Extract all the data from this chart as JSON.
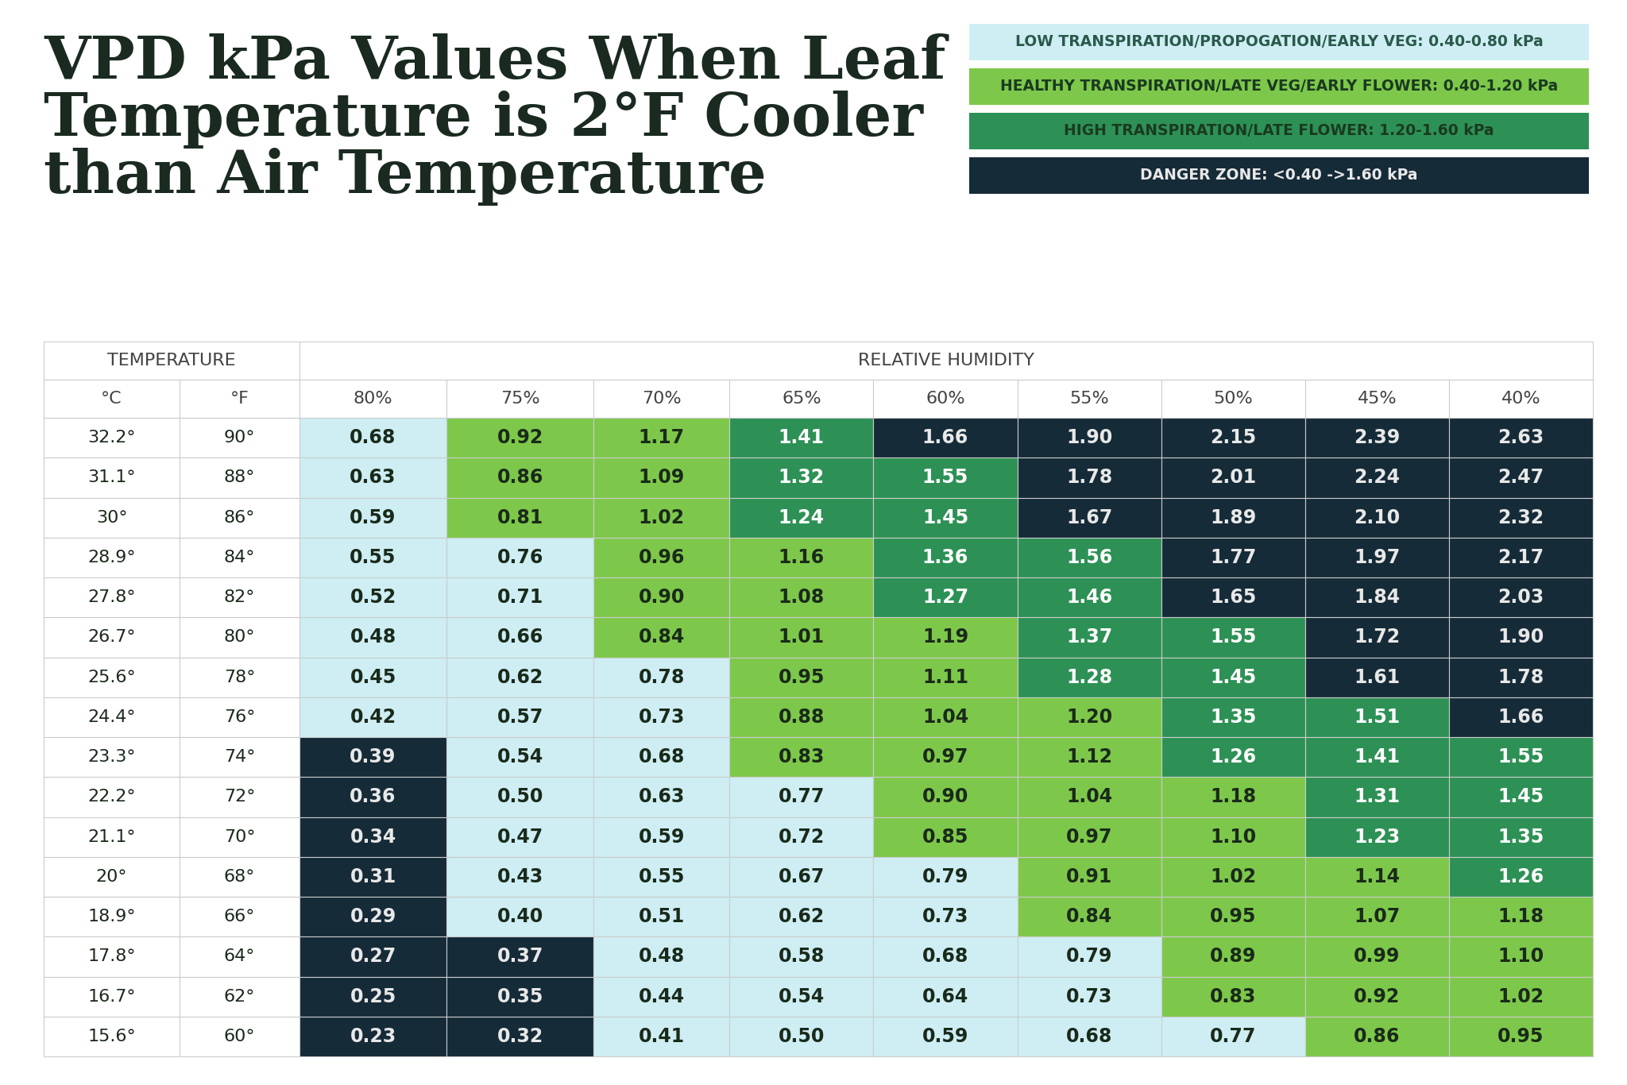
{
  "title_line1": "VPD kPa Values When Leaf",
  "title_line2_normal": "Temperature is ",
  "title_line2_bold": "2°F Cooler",
  "title_line3": "than Air Temperature",
  "background_color": "#ffffff",
  "temp_c": [
    "32.2°",
    "31.1°",
    "30°",
    "28.9°",
    "27.8°",
    "26.7°",
    "25.6°",
    "24.4°",
    "23.3°",
    "22.2°",
    "21.1°",
    "20°",
    "18.9°",
    "17.8°",
    "16.7°",
    "15.6°"
  ],
  "temp_f": [
    "90°",
    "88°",
    "86°",
    "84°",
    "82°",
    "80°",
    "78°",
    "76°",
    "74°",
    "72°",
    "70°",
    "68°",
    "66°",
    "64°",
    "62°",
    "60°"
  ],
  "humidity_cols": [
    "80%",
    "75%",
    "70%",
    "65%",
    "60%",
    "55%",
    "50%",
    "45%",
    "40%"
  ],
  "values": [
    [
      0.68,
      0.92,
      1.17,
      1.41,
      1.66,
      1.9,
      2.15,
      2.39,
      2.63
    ],
    [
      0.63,
      0.86,
      1.09,
      1.32,
      1.55,
      1.78,
      2.01,
      2.24,
      2.47
    ],
    [
      0.59,
      0.81,
      1.02,
      1.24,
      1.45,
      1.67,
      1.89,
      2.1,
      2.32
    ],
    [
      0.55,
      0.76,
      0.96,
      1.16,
      1.36,
      1.56,
      1.77,
      1.97,
      2.17
    ],
    [
      0.52,
      0.71,
      0.9,
      1.08,
      1.27,
      1.46,
      1.65,
      1.84,
      2.03
    ],
    [
      0.48,
      0.66,
      0.84,
      1.01,
      1.19,
      1.37,
      1.55,
      1.72,
      1.9
    ],
    [
      0.45,
      0.62,
      0.78,
      0.95,
      1.11,
      1.28,
      1.45,
      1.61,
      1.78
    ],
    [
      0.42,
      0.57,
      0.73,
      0.88,
      1.04,
      1.2,
      1.35,
      1.51,
      1.66
    ],
    [
      0.39,
      0.54,
      0.68,
      0.83,
      0.97,
      1.12,
      1.26,
      1.41,
      1.55
    ],
    [
      0.36,
      0.5,
      0.63,
      0.77,
      0.9,
      1.04,
      1.18,
      1.31,
      1.45
    ],
    [
      0.34,
      0.47,
      0.59,
      0.72,
      0.85,
      0.97,
      1.1,
      1.23,
      1.35
    ],
    [
      0.31,
      0.43,
      0.55,
      0.67,
      0.79,
      0.91,
      1.02,
      1.14,
      1.26
    ],
    [
      0.29,
      0.4,
      0.51,
      0.62,
      0.73,
      0.84,
      0.95,
      1.07,
      1.18
    ],
    [
      0.27,
      0.37,
      0.48,
      0.58,
      0.68,
      0.79,
      0.89,
      0.99,
      1.1
    ],
    [
      0.25,
      0.35,
      0.44,
      0.54,
      0.64,
      0.73,
      0.83,
      0.92,
      1.02
    ],
    [
      0.23,
      0.32,
      0.41,
      0.5,
      0.59,
      0.68,
      0.77,
      0.86,
      0.95
    ]
  ],
  "legend_items": [
    {
      "label": "LOW TRANSPIRATION/PROPOGATION/EARLY VEG: 0.40-0.80 kPa",
      "bg": "#ceeef4",
      "text": "#2a5a4a"
    },
    {
      "label": "HEALTHY TRANSPIRATION/LATE VEG/EARLY FLOWER: 0.40-1.20 kPa",
      "bg": "#7dc84a",
      "text": "#1a3a20"
    },
    {
      "label": "HIGH TRANSPIRATION/LATE FLOWER: 1.20-1.60 kPa",
      "bg": "#2d9155",
      "text": "#1a3a20"
    },
    {
      "label": "DANGER ZONE: <0.40 ->1.60 kPa",
      "bg": "#162b38",
      "text": "#e8e8e8"
    }
  ],
  "title_color": "#1a2a20",
  "table_border_color": "#cccccc",
  "header_bg": "#ffffff",
  "header_text_color": "#444444",
  "temp_col_bg": "#ffffff",
  "temp_text_color": "#1a2a1a"
}
